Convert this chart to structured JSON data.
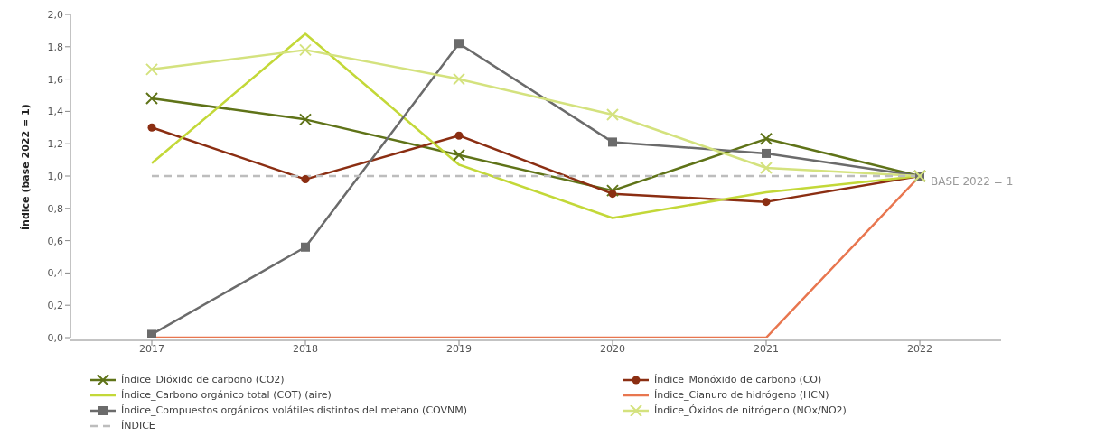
{
  "chart_data": {
    "type": "line",
    "ylabel": "Índice (base 2022 = 1)",
    "categories": [
      "2017",
      "2018",
      "2019",
      "2020",
      "2021",
      "2022"
    ],
    "series": [
      {
        "name": "Índice_Dióxido de carbono (CO2)",
        "color": "#5f7318",
        "marker": "cross",
        "values": [
          1.48,
          1.35,
          1.13,
          0.91,
          1.23,
          1.0
        ]
      },
      {
        "name": "Índice_Monóxido de carbono (CO)",
        "color": "#8b2e12",
        "marker": "circle",
        "values": [
          1.3,
          0.98,
          1.25,
          0.89,
          0.84,
          1.0
        ]
      },
      {
        "name": "Índice_Carbono orgánico total (COT) (aire)",
        "color": "#c3d838",
        "marker": "none",
        "values": [
          1.08,
          1.88,
          1.07,
          0.74,
          0.9,
          1.0
        ]
      },
      {
        "name": "Índice_Cianuro de hidrógeno (HCN)",
        "color": "#e8764f",
        "marker": "none",
        "values": [
          0,
          0,
          0,
          0,
          0,
          1.0
        ]
      },
      {
        "name": "Índice_Compuestos orgánicos volátiles distintos del metano (COVNM)",
        "color": "#6b6b6b",
        "marker": "square",
        "values": [
          0.02,
          0.56,
          1.82,
          1.21,
          1.14,
          1.0
        ]
      },
      {
        "name": "Índice_Óxidos de nitrógeno (NOx/NO2)",
        "color": "#d4e27e",
        "marker": "cross",
        "values": [
          1.66,
          1.78,
          1.6,
          1.38,
          1.05,
          1.0
        ]
      },
      {
        "name": "ÍNDICE",
        "color": "#bdbdbd",
        "marker": "none",
        "line_style": "dashed",
        "values": [
          1,
          1,
          1,
          1,
          1,
          1
        ]
      }
    ],
    "ylim": [
      0,
      2
    ],
    "yticks": [
      {
        "value": 0,
        "label": "0,0"
      },
      {
        "value": 0.2,
        "label": "0,2"
      },
      {
        "value": 0.4,
        "label": "0,4"
      },
      {
        "value": 0.6,
        "label": "0,6"
      },
      {
        "value": 0.8,
        "label": "0,8"
      },
      {
        "value": 1,
        "label": "1,0"
      },
      {
        "value": 1.2,
        "label": "1,2"
      },
      {
        "value": 1.4,
        "label": "1,4"
      },
      {
        "value": 1.6,
        "label": "1,6"
      },
      {
        "value": 1.8,
        "label": "1,8"
      },
      {
        "value": 2,
        "label": "2,0"
      }
    ],
    "annotations": [
      {
        "text": "BASE 2022 = 1",
        "x": "2022",
        "y": 1
      }
    ],
    "legend": "bottom",
    "grid": false
  }
}
